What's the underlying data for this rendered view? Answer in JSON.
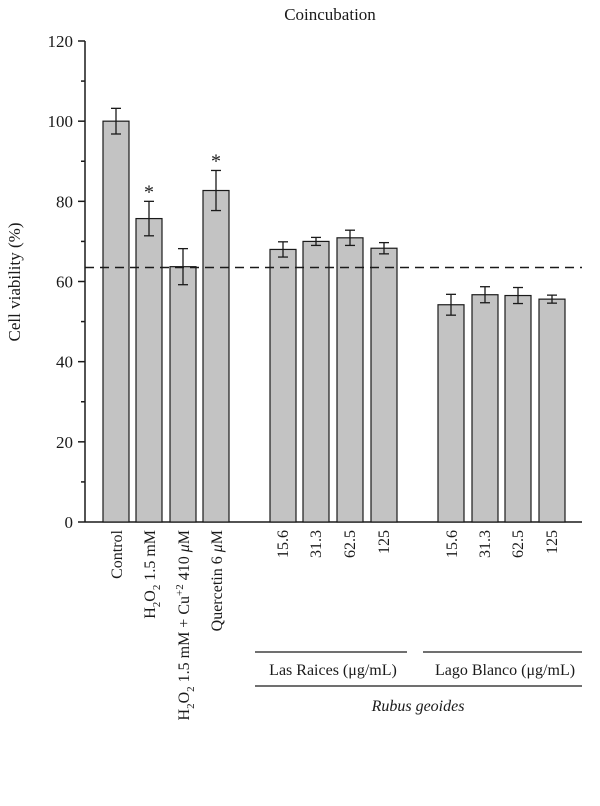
{
  "chart_data": {
    "type": "bar",
    "title": "Coincubation",
    "ylabel": "Cell viability (%)",
    "ylim": [
      0,
      120
    ],
    "yticks": [
      0,
      20,
      40,
      60,
      80,
      100,
      120
    ],
    "grid": false,
    "bar_color": "#c3c3c3",
    "reference_line": {
      "y": 63.5,
      "style": "dashed"
    },
    "bars": [
      {
        "key": "control",
        "value": 100.0,
        "error": 3.2,
        "significant": false
      },
      {
        "key": "h2o2",
        "value": 75.7,
        "error": 4.3,
        "significant": true
      },
      {
        "key": "h2o2_cu",
        "value": 63.7,
        "error": 4.5,
        "significant": false
      },
      {
        "key": "quercetin",
        "value": 82.7,
        "error": 5.0,
        "significant": true
      },
      {
        "key": "lr_15_6",
        "value": 68.0,
        "error": 1.9,
        "significant": false
      },
      {
        "key": "lr_31_3",
        "value": 70.0,
        "error": 1.0,
        "significant": false
      },
      {
        "key": "lr_62_5",
        "value": 70.9,
        "error": 1.9,
        "significant": false
      },
      {
        "key": "lr_125",
        "value": 68.3,
        "error": 1.4,
        "significant": false
      },
      {
        "key": "lb_15_6",
        "value": 54.2,
        "error": 2.6,
        "significant": false
      },
      {
        "key": "lb_31_3",
        "value": 56.7,
        "error": 2.0,
        "significant": false
      },
      {
        "key": "lb_62_5",
        "value": 56.5,
        "error": 2.0,
        "significant": false
      },
      {
        "key": "lb_125",
        "value": 55.6,
        "error": 1.0,
        "significant": false
      }
    ],
    "significance_marker": "*",
    "category_labels": {
      "control": "Control",
      "h2o2_main": "H",
      "h2o2_sub": "2",
      "h2o2_main2": "O",
      "h2o2_sub2": "2",
      "h2o2_rest": " 1.5 mM",
      "h2o2_cu_main": "H",
      "h2o2_cu_sub": "2",
      "h2o2_cu_main2": "O",
      "h2o2_cu_sub2": "2",
      "h2o2_cu_rest": " 1.5 mM + Cu",
      "h2o2_cu_sup": "+2",
      "h2o2_cu_end": " 410 ",
      "h2o2_cu_mu": "μ",
      "h2o2_cu_unit": "M",
      "quercetin": "Quercetin 6 ",
      "quercetin_mu": "μ",
      "quercetin_unit": "M",
      "lr_15_6": "15.6",
      "lr_31_3": "31.3",
      "lr_62_5": "62.5",
      "lr_125": "125",
      "lb_15_6": "15.6",
      "lb_31_3": "31.3",
      "lb_62_5": "62.5",
      "lb_125": "125"
    },
    "groups": {
      "las_raices": "Las Raices (μg/mL)",
      "lago_blanco": "Lago Blanco (μg/mL)",
      "species": "Rubus geoides"
    }
  }
}
